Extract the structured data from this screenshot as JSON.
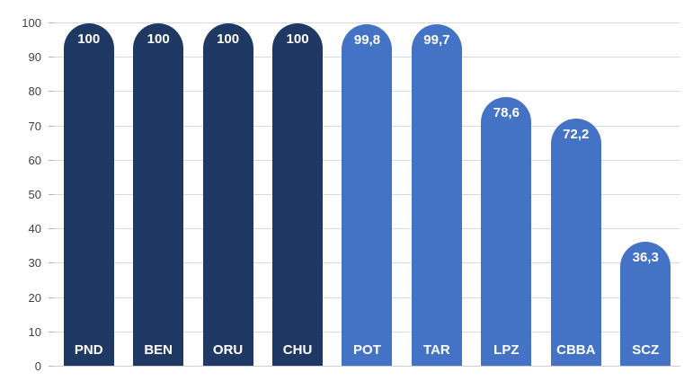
{
  "chart_data": {
    "type": "bar",
    "title": "",
    "xlabel": "",
    "ylabel": "",
    "categories": [
      "PND",
      "BEN",
      "ORU",
      "CHU",
      "POT",
      "TAR",
      "LPZ",
      "CBBA",
      "SCZ"
    ],
    "values": [
      100,
      100,
      100,
      100,
      99.8,
      99.7,
      78.6,
      72.2,
      36.3
    ],
    "value_labels": [
      "100",
      "100",
      "100",
      "100",
      "99,8",
      "99,7",
      "78,6",
      "72,2",
      "36,3"
    ],
    "bar_colors": [
      "#1F3864",
      "#1F3864",
      "#1F3864",
      "#1F3864",
      "#4472C4",
      "#4472C4",
      "#4472C4",
      "#4472C4",
      "#4472C4"
    ],
    "ylim": [
      0,
      100
    ],
    "yticks": [
      0,
      10,
      20,
      30,
      40,
      50,
      60,
      70,
      80,
      90,
      100
    ],
    "grid": true,
    "legend": false,
    "colors": {
      "dark_bar": "#1F3864",
      "light_bar": "#4472C4",
      "gridline": "#D9D9D9",
      "axis_line": "#CFCFCF",
      "tick_label": "#404040",
      "bar_label": "#FFFFFF",
      "background": "#FFFFFF"
    }
  }
}
